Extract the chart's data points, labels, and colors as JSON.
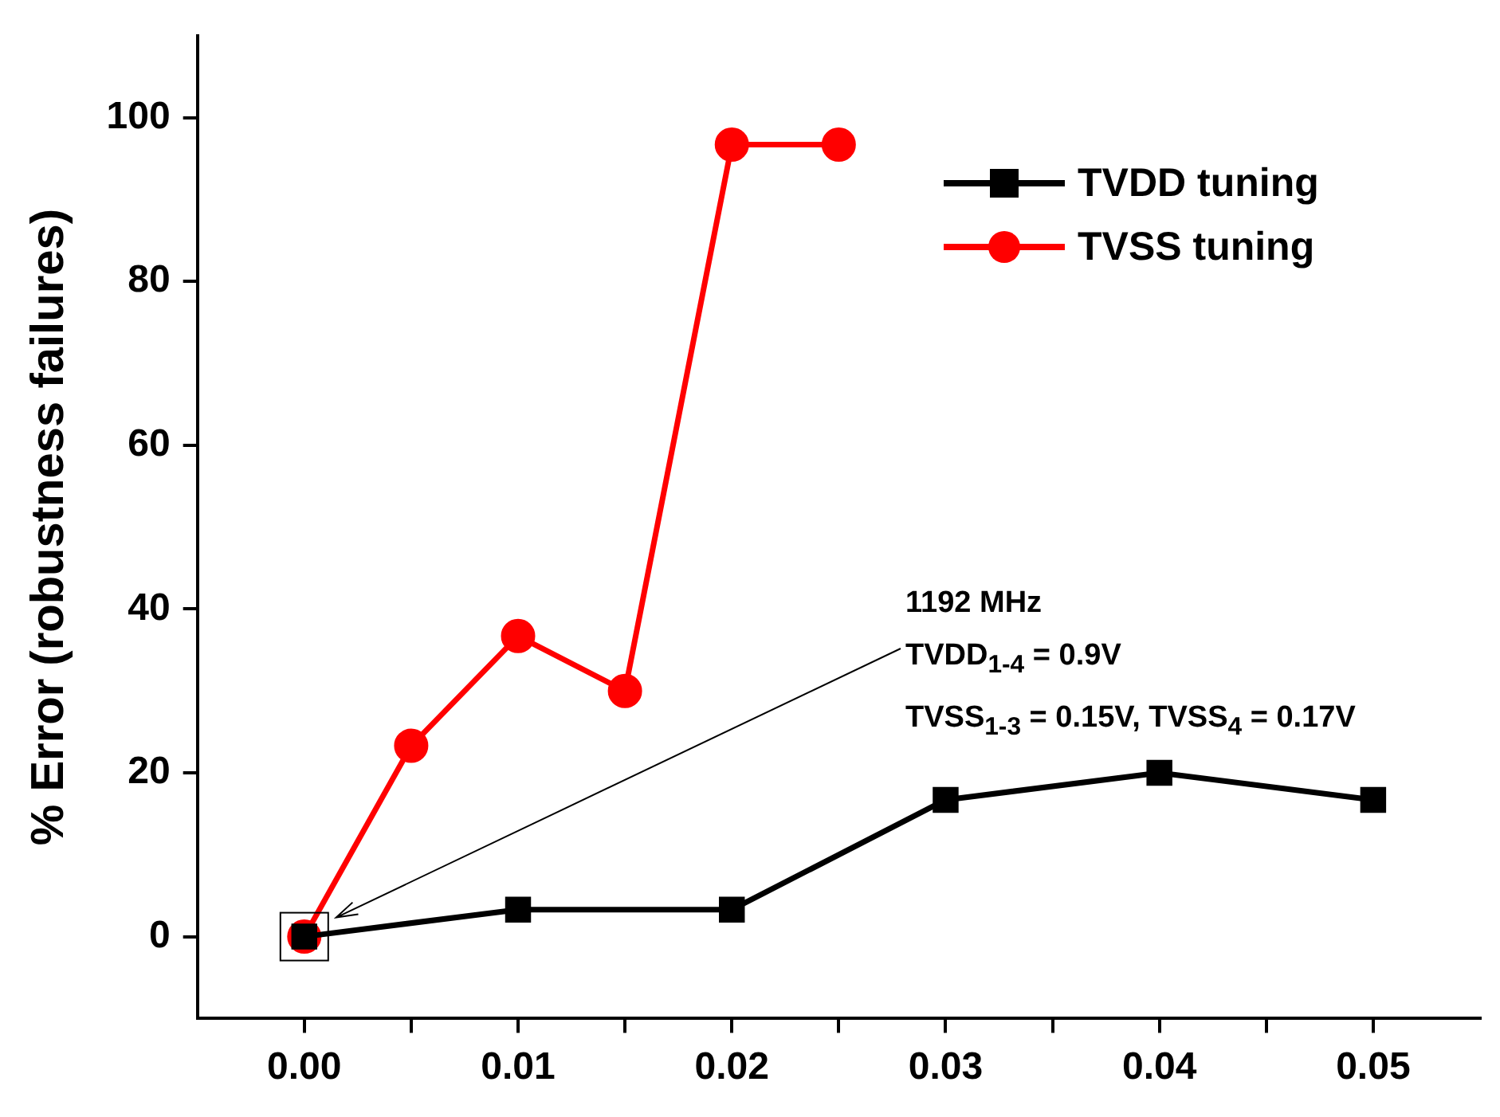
{
  "chart_data": {
    "type": "line",
    "ylabel": "% Error (robustness failures)",
    "xlim": [
      -0.005,
      0.055
    ],
    "ylim": [
      -10,
      110
    ],
    "xticks": [
      {
        "value": 0,
        "label": "0.00"
      },
      {
        "value": 0.005,
        "label": null
      },
      {
        "value": 0.01,
        "label": "0.01"
      },
      {
        "value": 0.015,
        "label": null
      },
      {
        "value": 0.02,
        "label": "0.02"
      },
      {
        "value": 0.025,
        "label": null
      },
      {
        "value": 0.03,
        "label": "0.03"
      },
      {
        "value": 0.035,
        "label": null
      },
      {
        "value": 0.04,
        "label": "0.04"
      },
      {
        "value": 0.045,
        "label": null
      },
      {
        "value": 0.05,
        "label": "0.05"
      }
    ],
    "yticks": [
      0,
      20,
      40,
      60,
      80,
      100
    ],
    "grid": false,
    "legend": "top right",
    "line_style": "solid",
    "series": [
      {
        "name": "TVDD tuning",
        "color": "#000000",
        "marker": "square",
        "x": [
          0,
          0.01,
          0.02,
          0.03,
          0.04,
          0.05
        ],
        "values": [
          0,
          3.3,
          3.3,
          16.7,
          20,
          16.7
        ]
      },
      {
        "name": "TVSS tuning",
        "color": "#ff0000",
        "marker": "circle",
        "x": [
          0,
          0.005,
          0.01,
          0.015,
          0.02,
          0.025
        ],
        "values": [
          0,
          23.3,
          36.7,
          30,
          96.7,
          96.7
        ]
      }
    ],
    "annotations": [
      "1192 MHz",
      "TVDD$_{1-4}$ = 0.9V",
      "TVSS$_{1-3}$ = 0.15V, TVSS$_{4}$ = 0.17V"
    ]
  }
}
